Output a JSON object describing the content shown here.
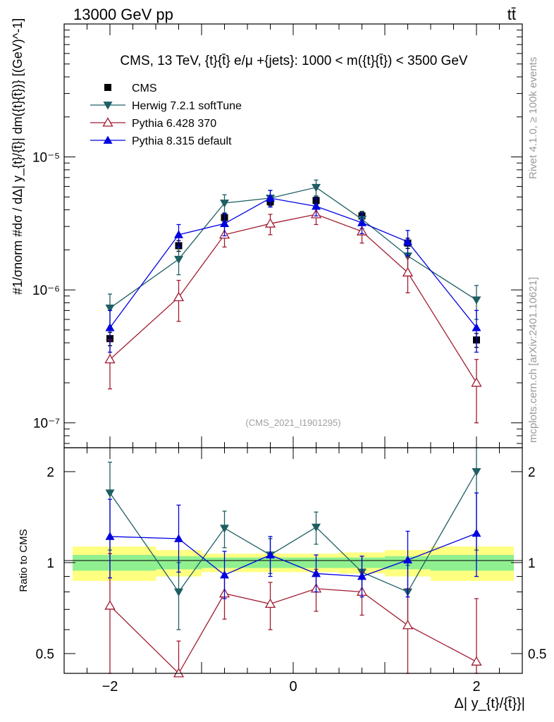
{
  "header": {
    "left": "13000 GeV pp",
    "right": "tt̄"
  },
  "side_labels": {
    "rivet": "Rivet 4.1.0, ≥ 100k events",
    "mcplots": "mcplots.cern.ch [arXiv:2401.10621]"
  },
  "chart_data": [
    {
      "panel": "main",
      "type": "line",
      "title": "CMS, 13 TeV, {t}{t̄} e/μ +{jets}: 1000 < m({t}{t̄}) < 3500 GeV",
      "watermark": "(CMS_2021_I1901295)",
      "ylabel": "#1/σnorm #dσ / dΔ| y_{t}/{t̄}| dm({t}{t̄})} [(GeV)^-1]",
      "yscale": "log",
      "ylim": [
        6.5e-08,
        0.0001
      ],
      "xlim": [
        -2.5,
        2.5
      ],
      "y_tick_labels": [
        {
          "value": 1e-07,
          "label": "10⁻⁷"
        },
        {
          "value": 1e-06,
          "label": "10⁻⁶"
        },
        {
          "value": 1e-05,
          "label": "10⁻⁵"
        }
      ],
      "x": [
        -2,
        -1.25,
        -0.75,
        -0.25,
        0.25,
        0.75,
        1.25,
        2
      ],
      "legend_position": "top-left",
      "series": [
        {
          "name": "CMS",
          "color": "#000000",
          "marker": "square",
          "values": [
            4.3e-07,
            2.15e-06,
            3.5e-06,
            4.6e-06,
            4.7e-06,
            3.6e-06,
            2.25e-06,
            4.2e-07
          ],
          "err": [
            5e-08,
            2e-07,
            2.5e-07,
            3e-07,
            3e-07,
            2.5e-07,
            2e-07,
            5e-08
          ]
        },
        {
          "name": "Herwig 7.2.1 softTune",
          "color": "#1d5f63",
          "marker": "triangle-down",
          "values": [
            7.3e-07,
            1.7e-06,
            4.5e-06,
            4.9e-06,
            5.9e-06,
            3.4e-06,
            1.8e-06,
            8.4e-07
          ],
          "err": [
            2e-07,
            4e-07,
            7e-07,
            7e-07,
            8e-07,
            5e-07,
            4e-07,
            2.4e-07
          ]
        },
        {
          "name": "Pythia 6.428 370",
          "color": "#a01b30",
          "marker": "triangle-open",
          "values": [
            3e-07,
            8.8e-07,
            2.6e-06,
            3.15e-06,
            3.7e-06,
            2.75e-06,
            1.35e-06,
            2e-07
          ],
          "err": [
            1.2e-07,
            3e-07,
            5e-07,
            5.5e-07,
            6e-07,
            5e-07,
            4e-07,
            1e-07
          ]
        },
        {
          "name": "Pythia 8.315 default",
          "color": "#0000e0",
          "marker": "triangle-up",
          "values": [
            5.2e-07,
            2.6e-06,
            3.15e-06,
            4.9e-06,
            4.25e-06,
            3.2e-06,
            2.3e-06,
            5.2e-07
          ],
          "err": [
            1.8e-07,
            5e-07,
            6e-07,
            7e-07,
            6.5e-07,
            5.5e-07,
            5e-07,
            1.8e-07
          ]
        }
      ]
    },
    {
      "panel": "ratio",
      "type": "line",
      "ylabel": "Ratio to CMS",
      "xlabel": "Δ| y_{t}/{t̄}}|",
      "yscale": "log",
      "ylim": [
        0.43,
        2.4
      ],
      "xlim": [
        -2.5,
        2.5
      ],
      "x_tick_labels": [
        {
          "value": -2,
          "label": "−2"
        },
        {
          "value": 0,
          "label": "0"
        },
        {
          "value": 2,
          "label": "2"
        }
      ],
      "y_tick_labels": [
        {
          "value": 0.5,
          "label": "0.5"
        },
        {
          "value": 1,
          "label": "1"
        },
        {
          "value": 2,
          "label": "2"
        }
      ],
      "x": [
        -2,
        -1.25,
        -0.75,
        -0.25,
        0.25,
        0.75,
        1.25,
        2
      ],
      "bands": {
        "bins": [
          -2.5,
          -1.5,
          -1,
          -0.5,
          0,
          0.5,
          1,
          1.5,
          2.5
        ],
        "stat_low": [
          0.94,
          0.95,
          0.96,
          0.96,
          0.96,
          0.96,
          0.95,
          0.94
        ],
        "stat_high": [
          1.06,
          1.05,
          1.04,
          1.04,
          1.04,
          1.04,
          1.05,
          1.06
        ],
        "tot_low": [
          0.87,
          0.9,
          0.93,
          0.93,
          0.93,
          0.92,
          0.9,
          0.87
        ],
        "tot_high": [
          1.13,
          1.1,
          1.07,
          1.07,
          1.07,
          1.08,
          1.1,
          1.13
        ],
        "stat_color": "#90f090",
        "tot_color": "#ffff80"
      },
      "series": [
        {
          "name": "Herwig 7.2.1 softTune",
          "color": "#1d5f63",
          "marker": "triangle-down",
          "values": [
            1.7,
            0.8,
            1.3,
            1.06,
            1.31,
            0.93,
            0.8,
            2.0
          ],
          "err_low": [
            0.6,
            0.2,
            0.18,
            0.14,
            0.16,
            0.12,
            0.18,
            0.9
          ],
          "err_high": [
            0.45,
            0.2,
            0.18,
            0.14,
            0.16,
            0.12,
            0.18,
            0.4
          ]
        },
        {
          "name": "Pythia 6.428 370",
          "color": "#a01b30",
          "marker": "triangle-open",
          "values": [
            0.72,
            0.41,
            0.79,
            0.73,
            0.82,
            0.8,
            0.62,
            0.47
          ],
          "err_low": [
            0.3,
            0.1,
            0.14,
            0.13,
            0.13,
            0.13,
            0.2,
            0.13
          ],
          "err_high": [
            0.35,
            0.14,
            0.13,
            0.13,
            0.13,
            0.13,
            0.2,
            0.29
          ]
        },
        {
          "name": "Pythia 8.315 default",
          "color": "#0000e0",
          "marker": "triangle-up",
          "values": [
            1.22,
            1.2,
            0.91,
            1.06,
            0.92,
            0.9,
            1.02,
            1.25
          ],
          "err_low": [
            0.33,
            0.27,
            0.15,
            0.16,
            0.12,
            0.13,
            0.25,
            0.35
          ],
          "err_high": [
            0.4,
            0.35,
            0.18,
            0.16,
            0.14,
            0.15,
            0.25,
            0.45
          ]
        }
      ]
    }
  ]
}
